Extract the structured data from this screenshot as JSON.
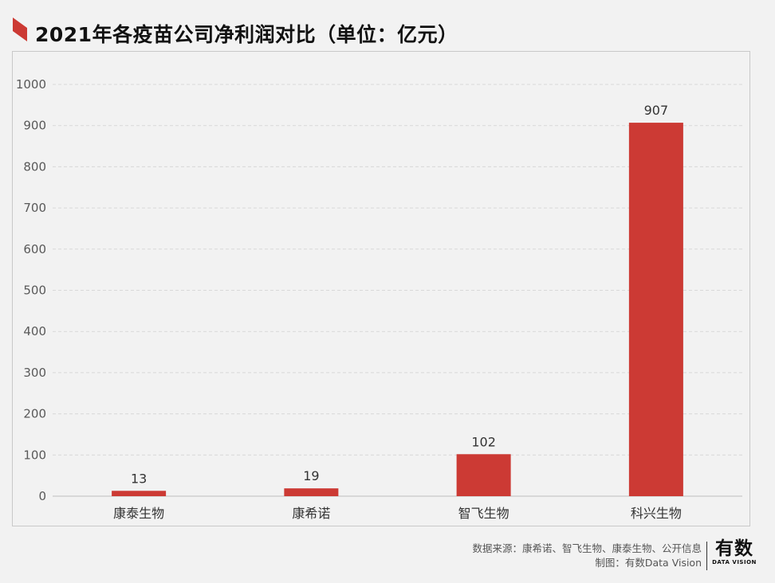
{
  "title": "2021年各疫苗公司净利润对比（单位：亿元）",
  "colors": {
    "bar": "#cc3a34",
    "accent": "#cc3a34",
    "grid": "#d8d8d8",
    "axis": "#bdbdbd"
  },
  "footer": {
    "source": "数据来源：康希诺、智飞生物、康泰生物、公开信息",
    "credit": "制图：有数Data Vision"
  },
  "logo": {
    "main": "有数",
    "sub": "DATA VISION"
  },
  "chart_data": {
    "type": "bar",
    "title": "2021年各疫苗公司净利润对比（单位：亿元）",
    "categories": [
      "康泰生物",
      "康希诺",
      "智飞生物",
      "科兴生物"
    ],
    "values": [
      13,
      19,
      102,
      907
    ],
    "data_labels": [
      "13",
      "19",
      "102",
      "907"
    ],
    "ylim": [
      0,
      1000
    ],
    "yticks": [
      0,
      100,
      200,
      300,
      400,
      500,
      600,
      700,
      800,
      900,
      1000
    ],
    "grid": true,
    "legend": "none",
    "xlabel": "",
    "ylabel": ""
  }
}
